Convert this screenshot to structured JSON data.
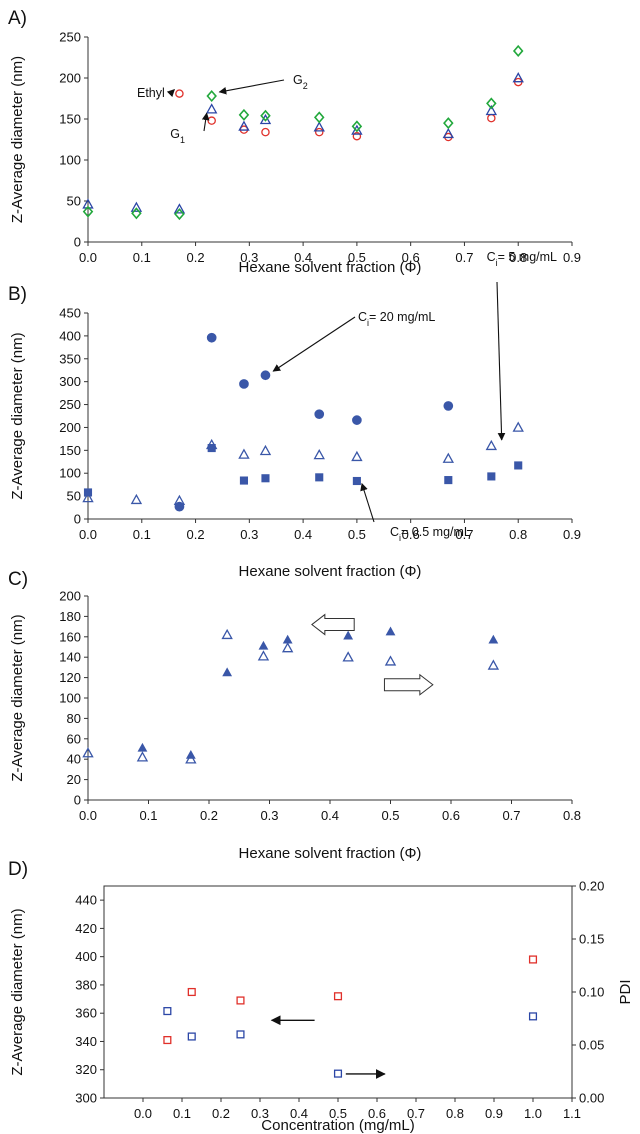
{
  "chart_data": [
    {
      "panel": "A)",
      "type": "scatter",
      "xlabel": "Hexane solvent fraction (Φ)",
      "ylabel": "Z-Average diameter (nm)",
      "xlim": [
        0,
        0.9
      ],
      "ylim": [
        0,
        250
      ],
      "xticks": [
        "0.0",
        "0.1",
        "0.2",
        "0.3",
        "0.4",
        "0.5",
        "0.6",
        "0.7",
        "0.8",
        "0.9"
      ],
      "yticks": [
        "0",
        "50",
        "100",
        "150",
        "200",
        "250"
      ],
      "series": [
        {
          "marker": "circle-open",
          "color": "#e0302a",
          "x": [
            0.17,
            0.23,
            0.29,
            0.33,
            0.43,
            0.5,
            0.67,
            0.75,
            0.8
          ],
          "y": [
            181,
            148,
            137,
            134,
            134,
            129,
            128,
            151,
            195
          ]
        },
        {
          "marker": "triangle-open",
          "color": "#2b46a6",
          "x": [
            0,
            0.09,
            0.17,
            0.23,
            0.29,
            0.33,
            0.43,
            0.5,
            0.67,
            0.75,
            0.8
          ],
          "y": [
            46,
            42,
            40,
            162,
            141,
            149,
            140,
            136,
            132,
            160,
            200
          ]
        },
        {
          "marker": "diamond-open",
          "color": "#22a83c",
          "x": [
            0,
            0.09,
            0.17,
            0.23,
            0.29,
            0.33,
            0.43,
            0.5,
            0.67,
            0.75,
            0.8
          ],
          "y": [
            37,
            35,
            34,
            178,
            155,
            154,
            152,
            141,
            145,
            169,
            233
          ]
        }
      ],
      "annotations": [
        {
          "text": "Ethyl",
          "arrow_to": [
            0.17,
            181
          ]
        },
        {
          "text": "G",
          "sub": "2",
          "arrow_to": [
            0.235,
            178
          ]
        },
        {
          "text": "G",
          "sub": "1",
          "arrow_to": [
            0.23,
            162
          ]
        }
      ]
    },
    {
      "panel": "B)",
      "type": "scatter",
      "xlabel": "Hexane solvent fraction (Φ)",
      "ylabel": "Z-Average diameter (nm)",
      "xlim": [
        0,
        0.9
      ],
      "ylim": [
        0,
        450
      ],
      "xticks": [
        "0.0",
        "0.1",
        "0.2",
        "0.3",
        "0.4",
        "0.5",
        "0.6",
        "0.7",
        "0.8",
        "0.9"
      ],
      "yticks": [
        "0",
        "50",
        "100",
        "150",
        "200",
        "250",
        "300",
        "350",
        "400",
        "450"
      ],
      "series": [
        {
          "marker": "circle-filled",
          "color": "#3a57a8",
          "x": [
            0.17,
            0.23,
            0.29,
            0.33,
            0.43,
            0.5,
            0.67
          ],
          "y": [
            27,
            396,
            295,
            314,
            229,
            216,
            247
          ]
        },
        {
          "marker": "triangle-open",
          "color": "#3a57a8",
          "x": [
            0,
            0.09,
            0.17,
            0.23,
            0.29,
            0.33,
            0.43,
            0.5,
            0.67,
            0.75,
            0.8
          ],
          "y": [
            46,
            42,
            40,
            162,
            141,
            149,
            140,
            136,
            132,
            160,
            200
          ]
        },
        {
          "marker": "square-filled",
          "color": "#3a57a8",
          "x": [
            0,
            0.23,
            0.29,
            0.33,
            0.43,
            0.5,
            0.67,
            0.75,
            0.8
          ],
          "y": [
            58,
            155,
            84,
            89,
            91,
            83,
            85,
            93,
            117
          ]
        }
      ],
      "annotations": [
        {
          "text": "C",
          "sub": "i",
          "tail": "= 20 mg/mL",
          "arrow_to": [
            0.335,
            314
          ]
        },
        {
          "text": "C",
          "sub": "i",
          "tail": "= 5 mg/mL",
          "arrow_to": [
            0.76,
            164
          ]
        },
        {
          "text": "C",
          "sub": "i",
          "tail": "= 0.5 mg/mL",
          "arrow_to": [
            0.5,
            86
          ]
        }
      ]
    },
    {
      "panel": "C)",
      "type": "scatter",
      "xlabel": "Hexane solvent fraction (Φ)",
      "ylabel": "Z-Average diameter (nm)",
      "xlim": [
        0,
        0.8
      ],
      "ylim": [
        0,
        200
      ],
      "xticks": [
        "0.0",
        "0.1",
        "0.2",
        "0.3",
        "0.4",
        "0.5",
        "0.6",
        "0.7",
        "0.8"
      ],
      "yticks": [
        "0",
        "20",
        "40",
        "60",
        "80",
        "100",
        "120",
        "140",
        "160",
        "180",
        "200"
      ],
      "series": [
        {
          "marker": "triangle-filled",
          "color": "#3a57a8",
          "x": [
            0.09,
            0.17,
            0.23,
            0.29,
            0.33,
            0.43,
            0.5,
            0.67
          ],
          "y": [
            51,
            44,
            125,
            151,
            157,
            161,
            165,
            157
          ]
        },
        {
          "marker": "triangle-open",
          "color": "#3a57a8",
          "x": [
            0,
            0.09,
            0.17,
            0.23,
            0.29,
            0.33,
            0.43,
            0.5,
            0.67
          ],
          "y": [
            46,
            42,
            40,
            162,
            141,
            149,
            140,
            136,
            132
          ]
        }
      ],
      "arrows": [
        {
          "direction": "left",
          "x": [
            0.37,
            0.44
          ],
          "y": 172
        },
        {
          "direction": "right",
          "x": [
            0.49,
            0.57
          ],
          "y": 113
        }
      ]
    },
    {
      "panel": "D)",
      "type": "scatter",
      "xlabel": "Concentration (mg/mL)",
      "ylabel": "Z-Average diameter (nm)",
      "y2label": "PDI",
      "xlim": [
        -0.1,
        1.1
      ],
      "ylim": [
        300,
        450
      ],
      "y2lim": [
        0,
        0.2
      ],
      "xticks": [
        "0.0",
        "0.1",
        "0.2",
        "0.3",
        "0.4",
        "0.5",
        "0.6",
        "0.7",
        "0.8",
        "0.9",
        "1.0",
        "1.1"
      ],
      "yticks": [
        "300",
        "320",
        "340",
        "360",
        "380",
        "400",
        "420",
        "440"
      ],
      "y2ticks": [
        "0.00",
        "0.05",
        "0.10",
        "0.15",
        "0.20"
      ],
      "series": [
        {
          "marker": "square-open",
          "color": "#e0302a",
          "axis": "left",
          "x": [
            0.0625,
            0.125,
            0.25,
            0.5,
            1.0
          ],
          "y": [
            341,
            375,
            369,
            372,
            398
          ]
        },
        {
          "marker": "square-open",
          "color": "#2b46a6",
          "axis": "right",
          "x": [
            0.0625,
            0.125,
            0.25,
            0.5,
            1.0
          ],
          "y": [
            0.082,
            0.058,
            0.06,
            0.023,
            0.077
          ]
        }
      ],
      "arrows": [
        {
          "direction": "left",
          "x": [
            0.33,
            0.44
          ],
          "y": 355
        },
        {
          "direction": "right",
          "x": [
            0.52,
            0.62
          ],
          "y": 317
        }
      ]
    }
  ]
}
